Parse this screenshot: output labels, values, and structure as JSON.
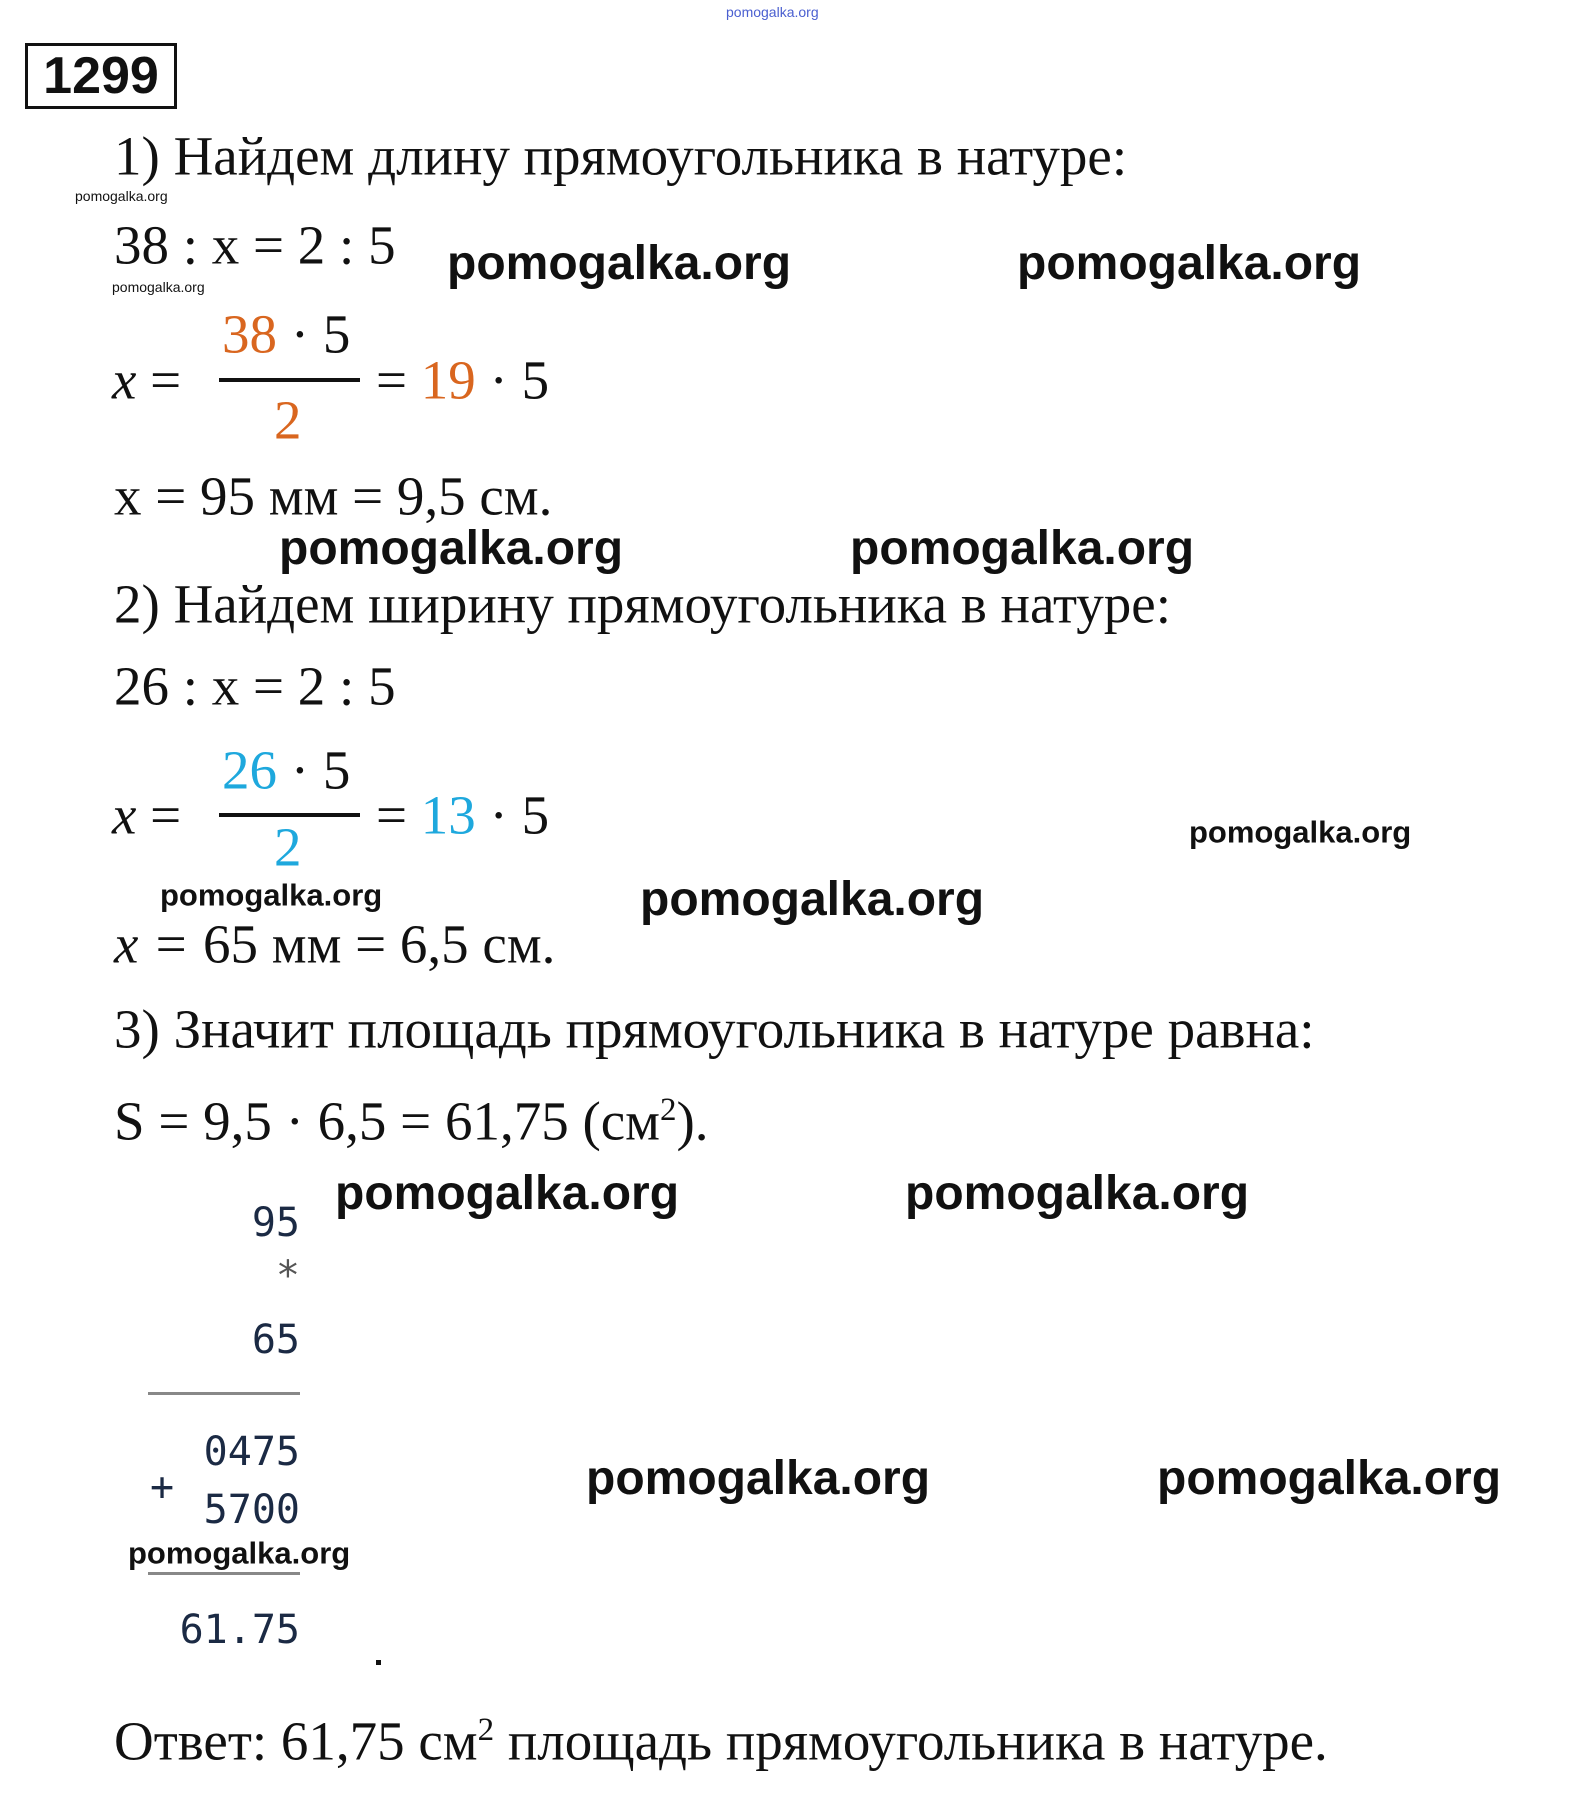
{
  "problem_number": "1299",
  "watermark": "pomogalka.org",
  "colors": {
    "orange": "#d9661f",
    "blue": "#1ea8dd",
    "watermark_top": "#4a5fd0"
  },
  "step1": {
    "heading": "1) Найдем длину прямоугольника в натуре:",
    "proportion": "38 : x = 2 : 5",
    "numerator_a": "38",
    "numerator_b": "· 5",
    "denominator": "2",
    "simplified_a": "19",
    "simplified_b": "· 5",
    "result": "x = 95 мм = 9,5 см."
  },
  "step2": {
    "heading": "2) Найдем ширину прямоугольника в натуре:",
    "proportion": "26 : x = 2 : 5",
    "numerator_a": "26",
    "numerator_b": "· 5",
    "denominator": "2",
    "simplified_a": "13",
    "simplified_b": "· 5",
    "result_a": "x = ",
    "result_b": "65 мм = 6,5 см."
  },
  "step3": {
    "heading": "3) Значит площадь прямоугольника в натуре равна:",
    "formula": "S = 9,5 · 6,5 = 61,75 (см",
    "formula_sup": "2",
    "formula_end": ")."
  },
  "column": {
    "a": "95",
    "op": "*",
    "b": "65",
    "p1": "0475",
    "plus": "+",
    "p2": "5700",
    "result": "61.75"
  },
  "answer": {
    "text": "Ответ: 61,75 см",
    "sup": "2",
    "end": " площадь прямоугольника в натуре."
  }
}
